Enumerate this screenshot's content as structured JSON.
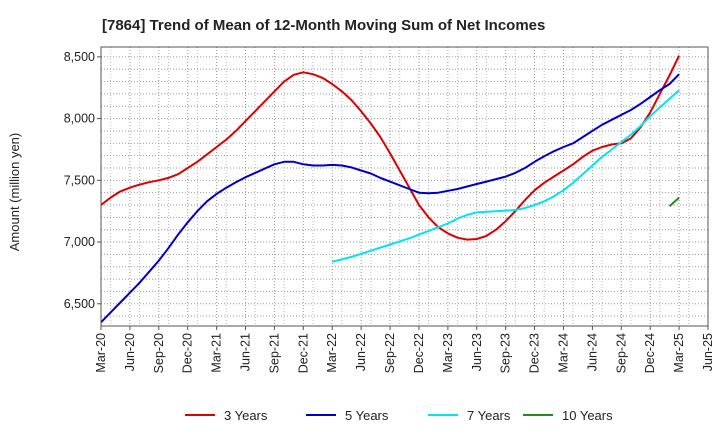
{
  "chart_data": {
    "type": "line",
    "title": "[7864]  Trend of Mean of 12-Month Moving Sum of Net Incomes",
    "ylabel": "Amount (million yen)",
    "xlabel": "",
    "ylim": [
      6320,
      8580
    ],
    "yticks": [
      6500,
      7000,
      7500,
      8000,
      8500
    ],
    "ytick_labels": [
      "6,500",
      "7,000",
      "7,500",
      "8,000",
      "8,500"
    ],
    "x_labels": [
      "Mar-20",
      "Jun-20",
      "Sep-20",
      "Dec-20",
      "Mar-21",
      "Jun-21",
      "Sep-21",
      "Dec-21",
      "Mar-22",
      "Jun-22",
      "Sep-22",
      "Dec-22",
      "Mar-23",
      "Jun-23",
      "Sep-23",
      "Dec-23",
      "Mar-24",
      "Jun-24",
      "Sep-24",
      "Dec-24",
      "Mar-25",
      "Jun-25"
    ],
    "grid": true,
    "legend_position": "bottom",
    "series": [
      {
        "name": "3 Years",
        "color": "#dd0000",
        "points": [
          [
            "Mar-20",
            7300
          ],
          [
            "Apr-20",
            7360
          ],
          [
            "May-20",
            7410
          ],
          [
            "Jun-20",
            7440
          ],
          [
            "Jul-20",
            7465
          ],
          [
            "Aug-20",
            7485
          ],
          [
            "Sep-20",
            7500
          ],
          [
            "Oct-20",
            7520
          ],
          [
            "Nov-20",
            7550
          ],
          [
            "Dec-20",
            7600
          ],
          [
            "Jan-21",
            7650
          ],
          [
            "Feb-21",
            7710
          ],
          [
            "Mar-21",
            7770
          ],
          [
            "Apr-21",
            7830
          ],
          [
            "May-21",
            7900
          ],
          [
            "Jun-21",
            7980
          ],
          [
            "Jul-21",
            8060
          ],
          [
            "Aug-21",
            8140
          ],
          [
            "Sep-21",
            8220
          ],
          [
            "Oct-21",
            8300
          ],
          [
            "Nov-21",
            8355
          ],
          [
            "Dec-21",
            8375
          ],
          [
            "Jan-22",
            8360
          ],
          [
            "Feb-22",
            8330
          ],
          [
            "Mar-22",
            8280
          ],
          [
            "Apr-22",
            8220
          ],
          [
            "May-22",
            8150
          ],
          [
            "Jun-22",
            8060
          ],
          [
            "Jul-22",
            7960
          ],
          [
            "Aug-22",
            7850
          ],
          [
            "Sep-22",
            7720
          ],
          [
            "Oct-22",
            7580
          ],
          [
            "Nov-22",
            7440
          ],
          [
            "Dec-22",
            7300
          ],
          [
            "Jan-23",
            7200
          ],
          [
            "Feb-23",
            7120
          ],
          [
            "Mar-23",
            7070
          ],
          [
            "Apr-23",
            7035
          ],
          [
            "May-23",
            7020
          ],
          [
            "Jun-23",
            7025
          ],
          [
            "Jul-23",
            7050
          ],
          [
            "Aug-23",
            7100
          ],
          [
            "Sep-23",
            7170
          ],
          [
            "Oct-23",
            7250
          ],
          [
            "Nov-23",
            7340
          ],
          [
            "Dec-23",
            7420
          ],
          [
            "Jan-24",
            7480
          ],
          [
            "Feb-24",
            7530
          ],
          [
            "Mar-24",
            7580
          ],
          [
            "Apr-24",
            7630
          ],
          [
            "May-24",
            7690
          ],
          [
            "Jun-24",
            7740
          ],
          [
            "Jul-24",
            7770
          ],
          [
            "Aug-24",
            7790
          ],
          [
            "Sep-24",
            7800
          ],
          [
            "Oct-24",
            7840
          ],
          [
            "Nov-24",
            7930
          ],
          [
            "Dec-24",
            8050
          ],
          [
            "Jan-25",
            8200
          ],
          [
            "Feb-25",
            8350
          ],
          [
            "Mar-25",
            8510
          ]
        ]
      },
      {
        "name": "5 Years",
        "color": "#0000cc",
        "points": [
          [
            "Mar-20",
            6350
          ],
          [
            "Apr-20",
            6430
          ],
          [
            "May-20",
            6510
          ],
          [
            "Jun-20",
            6590
          ],
          [
            "Jul-20",
            6670
          ],
          [
            "Aug-20",
            6760
          ],
          [
            "Sep-20",
            6850
          ],
          [
            "Oct-20",
            6950
          ],
          [
            "Nov-20",
            7060
          ],
          [
            "Dec-20",
            7160
          ],
          [
            "Jan-21",
            7250
          ],
          [
            "Feb-21",
            7330
          ],
          [
            "Mar-21",
            7390
          ],
          [
            "Apr-21",
            7440
          ],
          [
            "May-21",
            7485
          ],
          [
            "Jun-21",
            7525
          ],
          [
            "Jul-21",
            7560
          ],
          [
            "Aug-21",
            7595
          ],
          [
            "Sep-21",
            7630
          ],
          [
            "Oct-21",
            7650
          ],
          [
            "Nov-21",
            7650
          ],
          [
            "Dec-21",
            7630
          ],
          [
            "Jan-22",
            7620
          ],
          [
            "Feb-22",
            7620
          ],
          [
            "Mar-22",
            7625
          ],
          [
            "Apr-22",
            7620
          ],
          [
            "May-22",
            7605
          ],
          [
            "Jun-22",
            7580
          ],
          [
            "Jul-22",
            7555
          ],
          [
            "Aug-22",
            7520
          ],
          [
            "Sep-22",
            7490
          ],
          [
            "Oct-22",
            7460
          ],
          [
            "Nov-22",
            7430
          ],
          [
            "Dec-22",
            7400
          ],
          [
            "Jan-23",
            7395
          ],
          [
            "Feb-23",
            7400
          ],
          [
            "Mar-23",
            7415
          ],
          [
            "Apr-23",
            7430
          ],
          [
            "May-23",
            7450
          ],
          [
            "Jun-23",
            7470
          ],
          [
            "Jul-23",
            7490
          ],
          [
            "Aug-23",
            7510
          ],
          [
            "Sep-23",
            7530
          ],
          [
            "Oct-23",
            7560
          ],
          [
            "Nov-23",
            7600
          ],
          [
            "Dec-23",
            7650
          ],
          [
            "Jan-24",
            7695
          ],
          [
            "Feb-24",
            7735
          ],
          [
            "Mar-24",
            7770
          ],
          [
            "Apr-24",
            7800
          ],
          [
            "May-24",
            7850
          ],
          [
            "Jun-24",
            7900
          ],
          [
            "Jul-24",
            7950
          ],
          [
            "Aug-24",
            7990
          ],
          [
            "Sep-24",
            8030
          ],
          [
            "Oct-24",
            8070
          ],
          [
            "Nov-24",
            8120
          ],
          [
            "Dec-24",
            8175
          ],
          [
            "Jan-25",
            8230
          ],
          [
            "Feb-25",
            8280
          ],
          [
            "Mar-25",
            8360
          ]
        ]
      },
      {
        "name": "7 Years",
        "color": "#00e5ee",
        "points": [
          [
            "Mar-22",
            6840
          ],
          [
            "Apr-22",
            6860
          ],
          [
            "May-22",
            6880
          ],
          [
            "Jun-22",
            6905
          ],
          [
            "Jul-22",
            6930
          ],
          [
            "Aug-22",
            6955
          ],
          [
            "Sep-22",
            6980
          ],
          [
            "Oct-22",
            7005
          ],
          [
            "Nov-22",
            7030
          ],
          [
            "Dec-22",
            7060
          ],
          [
            "Jan-23",
            7090
          ],
          [
            "Feb-23",
            7120
          ],
          [
            "Mar-23",
            7150
          ],
          [
            "Apr-23",
            7190
          ],
          [
            "May-23",
            7220
          ],
          [
            "Jun-23",
            7240
          ],
          [
            "Jul-23",
            7245
          ],
          [
            "Aug-23",
            7250
          ],
          [
            "Sep-23",
            7255
          ],
          [
            "Oct-23",
            7260
          ],
          [
            "Nov-23",
            7275
          ],
          [
            "Dec-23",
            7300
          ],
          [
            "Jan-24",
            7330
          ],
          [
            "Feb-24",
            7370
          ],
          [
            "Mar-24",
            7420
          ],
          [
            "Apr-24",
            7480
          ],
          [
            "May-24",
            7550
          ],
          [
            "Jun-24",
            7620
          ],
          [
            "Jul-24",
            7690
          ],
          [
            "Aug-24",
            7750
          ],
          [
            "Sep-24",
            7810
          ],
          [
            "Oct-24",
            7870
          ],
          [
            "Nov-24",
            7940
          ],
          [
            "Dec-24",
            8020
          ],
          [
            "Jan-25",
            8090
          ],
          [
            "Feb-25",
            8160
          ],
          [
            "Mar-25",
            8230
          ]
        ]
      },
      {
        "name": "10 Years",
        "color": "#228b22",
        "points": [
          [
            "Feb-25",
            7290
          ],
          [
            "Mar-25",
            7360
          ]
        ]
      }
    ]
  }
}
